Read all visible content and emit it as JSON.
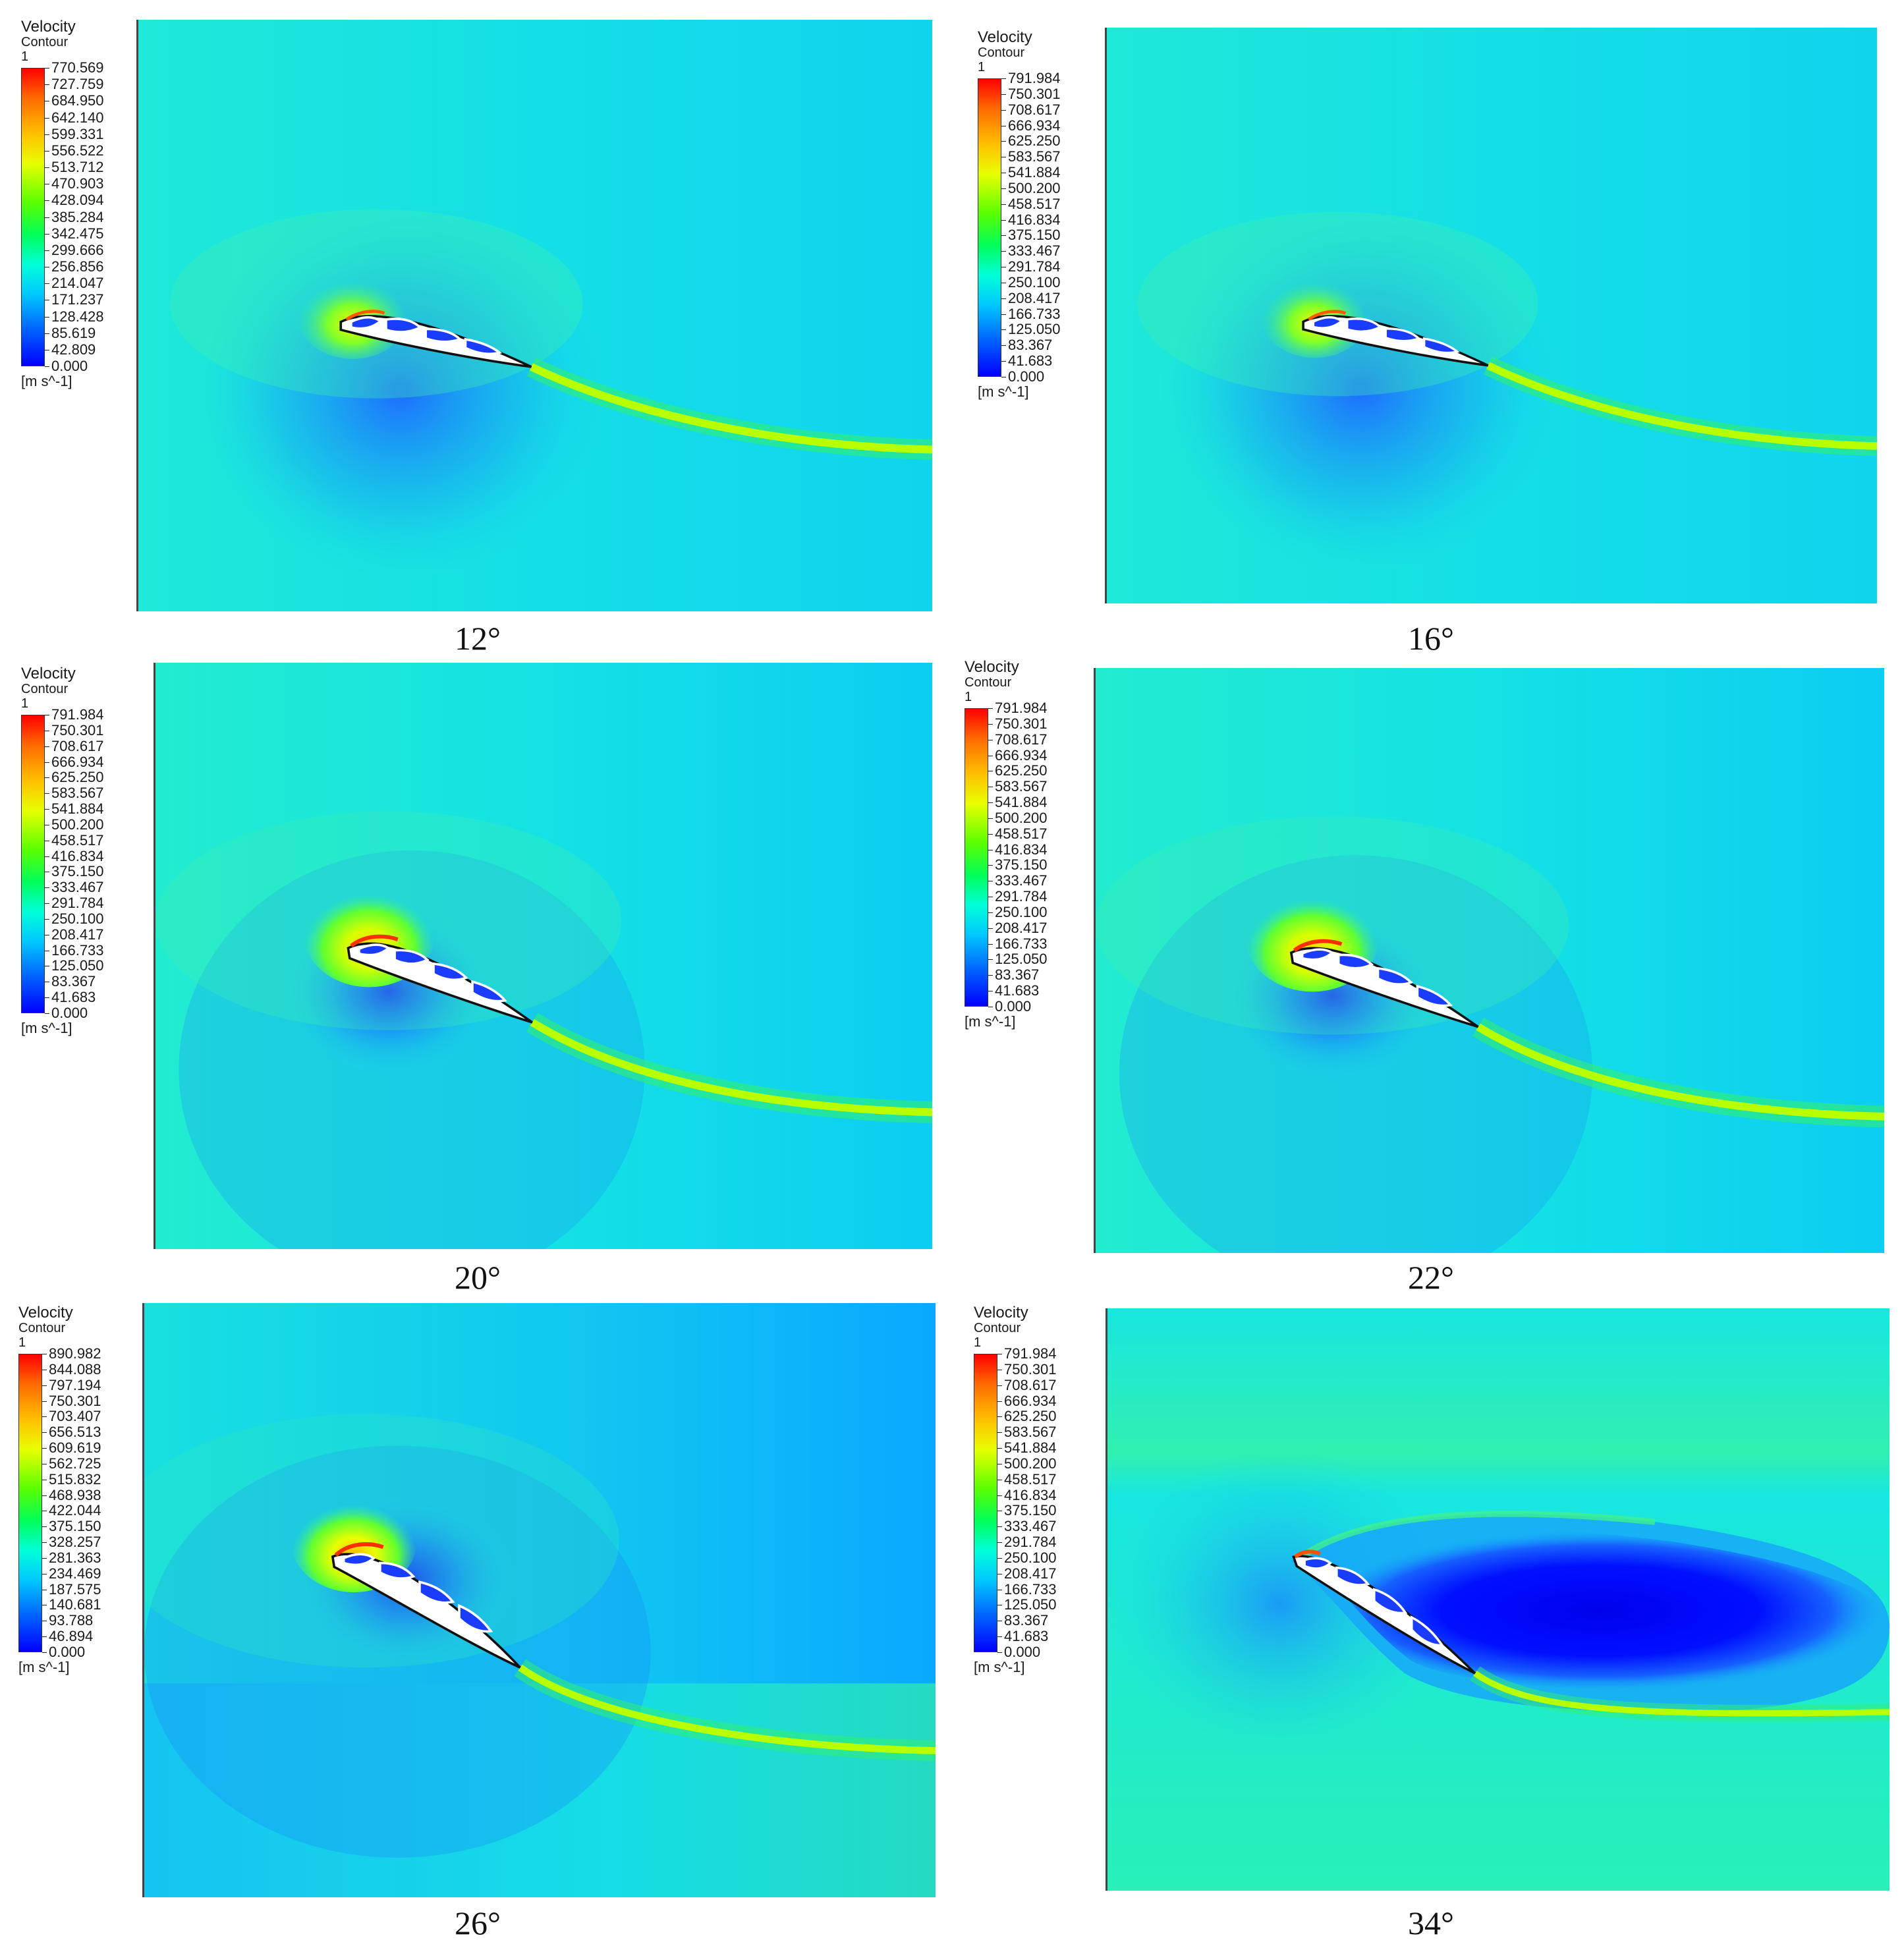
{
  "panels": [
    {
      "title": "Velocity",
      "subtitle": "Contour 1",
      "unit": "[m s^-1]",
      "caption": "12°",
      "ticks": [
        "770.569",
        "727.759",
        "684.950",
        "642.140",
        "599.331",
        "556.522",
        "513.712",
        "470.903",
        "428.094",
        "385.284",
        "342.475",
        "299.666",
        "256.856",
        "214.047",
        "171.237",
        "128.428",
        "85.619",
        "42.809",
        "0.000"
      ]
    },
    {
      "title": "Velocity",
      "subtitle": "Contour 1",
      "unit": "[m s^-1]",
      "caption": "16°",
      "ticks": [
        "791.984",
        "750.301",
        "708.617",
        "666.934",
        "625.250",
        "583.567",
        "541.884",
        "500.200",
        "458.517",
        "416.834",
        "375.150",
        "333.467",
        "291.784",
        "250.100",
        "208.417",
        "166.733",
        "125.050",
        "83.367",
        "41.683",
        "0.000"
      ]
    },
    {
      "title": "Velocity",
      "subtitle": "Contour 1",
      "unit": "[m s^-1]",
      "caption": "20°",
      "ticks": [
        "791.984",
        "750.301",
        "708.617",
        "666.934",
        "625.250",
        "583.567",
        "541.884",
        "500.200",
        "458.517",
        "416.834",
        "375.150",
        "333.467",
        "291.784",
        "250.100",
        "208.417",
        "166.733",
        "125.050",
        "83.367",
        "41.683",
        "0.000"
      ]
    },
    {
      "title": "Velocity",
      "subtitle": "Contour 1",
      "unit": "[m s^-1]",
      "caption": "22°",
      "ticks": [
        "791.984",
        "750.301",
        "708.617",
        "666.934",
        "625.250",
        "583.567",
        "541.884",
        "500.200",
        "458.517",
        "416.834",
        "375.150",
        "333.467",
        "291.784",
        "250.100",
        "208.417",
        "166.733",
        "125.050",
        "83.367",
        "41.683",
        "0.000"
      ]
    },
    {
      "title": "Velocity",
      "subtitle": "Contour 1",
      "unit": "[m s^-1]",
      "caption": "26°",
      "ticks": [
        "890.982",
        "844.088",
        "797.194",
        "750.301",
        "703.407",
        "656.513",
        "609.619",
        "562.725",
        "515.832",
        "468.938",
        "422.044",
        "375.150",
        "328.257",
        "281.363",
        "234.469",
        "187.575",
        "140.681",
        "93.788",
        "46.894",
        "0.000"
      ]
    },
    {
      "title": "Velocity",
      "subtitle": "Contour 1",
      "unit": "[m s^-1]",
      "caption": "34°",
      "ticks": [
        "791.984",
        "750.301",
        "708.617",
        "666.934",
        "625.250",
        "583.567",
        "541.884",
        "500.200",
        "458.517",
        "416.834",
        "375.150",
        "333.467",
        "291.784",
        "250.100",
        "208.417",
        "166.733",
        "125.050",
        "83.367",
        "41.683",
        "0.000"
      ]
    }
  ],
  "colors": {
    "background": "#19e6e6",
    "low": "#0000ff",
    "high": "#ff0000",
    "wake_green": "#5cff00"
  }
}
